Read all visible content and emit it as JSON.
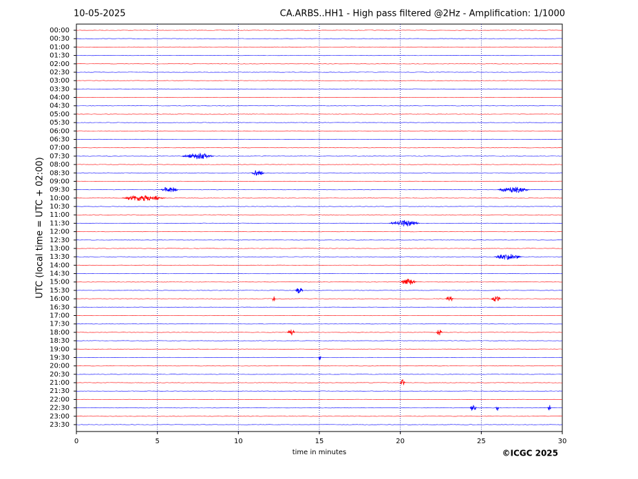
{
  "chart_data": {
    "type": "helicorder",
    "date": "10-05-2025",
    "title": "CA.ARBS..HH1 - High pass filtered @2Hz - Amplification: 1/1000",
    "ylabel": "UTC (local time = UTC + 02:00)",
    "xlabel": "time in minutes",
    "credit": "©ICGC 2025",
    "xlim": [
      0,
      30
    ],
    "xticks": [
      0,
      5,
      10,
      15,
      20,
      25,
      30
    ],
    "grid": true,
    "colors": [
      "#ff0000",
      "#0000ff"
    ],
    "rows": [
      "00:00",
      "00:30",
      "01:00",
      "01:30",
      "02:00",
      "02:30",
      "03:00",
      "03:30",
      "04:00",
      "04:30",
      "05:00",
      "05:30",
      "06:00",
      "06:30",
      "07:00",
      "07:30",
      "08:00",
      "08:30",
      "09:00",
      "09:30",
      "10:00",
      "10:30",
      "11:00",
      "11:30",
      "12:00",
      "12:30",
      "13:00",
      "13:30",
      "14:00",
      "14:30",
      "15:00",
      "15:30",
      "16:00",
      "16:30",
      "17:00",
      "17:30",
      "18:00",
      "18:30",
      "19:00",
      "19:30",
      "20:00",
      "20:30",
      "21:00",
      "21:30",
      "22:00",
      "22:30",
      "23:00",
      "23:30"
    ],
    "events": [
      {
        "row": "07:30",
        "start": 6.5,
        "end": 8.5
      },
      {
        "row": "08:30",
        "start": 10.8,
        "end": 11.6
      },
      {
        "row": "09:30",
        "start": 5.2,
        "end": 6.3
      },
      {
        "row": "09:30",
        "start": 26,
        "end": 28
      },
      {
        "row": "10:00",
        "start": 2.8,
        "end": 5.5
      },
      {
        "row": "11:30",
        "start": 19.3,
        "end": 21.2
      },
      {
        "row": "13:30",
        "start": 25.8,
        "end": 27.5
      },
      {
        "row": "15:00",
        "start": 20,
        "end": 21
      },
      {
        "row": "15:30",
        "start": 13.5,
        "end": 14
      },
      {
        "row": "16:00",
        "start": 12.1,
        "end": 12.3
      },
      {
        "row": "16:00",
        "start": 22.8,
        "end": 23.3
      },
      {
        "row": "16:00",
        "start": 25.6,
        "end": 26.2
      },
      {
        "row": "18:00",
        "start": 13,
        "end": 13.5
      },
      {
        "row": "18:00",
        "start": 22.2,
        "end": 22.6
      },
      {
        "row": "19:30",
        "start": 14.95,
        "end": 15.1
      },
      {
        "row": "21:00",
        "start": 20,
        "end": 20.3
      },
      {
        "row": "22:30",
        "start": 24.3,
        "end": 24.7
      },
      {
        "row": "22:30",
        "start": 25.9,
        "end": 26.1
      },
      {
        "row": "22:30",
        "start": 29.1,
        "end": 29.3
      }
    ]
  }
}
